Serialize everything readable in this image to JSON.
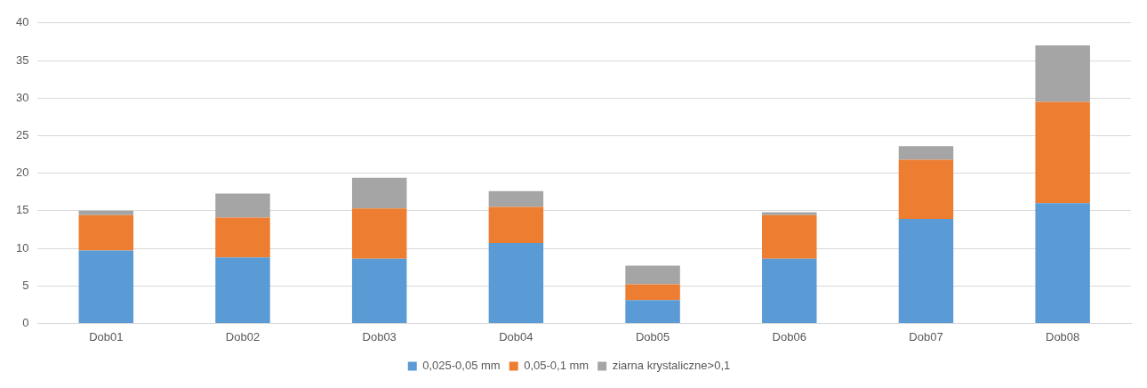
{
  "chart_data": {
    "type": "bar",
    "stacked": true,
    "categories": [
      "Dob01",
      "Dob02",
      "Dob03",
      "Dob04",
      "Dob05",
      "Dob06",
      "Dob07",
      "Dob08"
    ],
    "series": [
      {
        "name": "0,025-0,05 mm",
        "color": "#5b9bd5",
        "values": [
          9.7,
          8.8,
          8.6,
          10.7,
          3.1,
          8.6,
          13.9,
          16.0
        ]
      },
      {
        "name": "0,05-0,1 mm",
        "color": "#ed7d31",
        "values": [
          4.7,
          5.3,
          6.7,
          4.8,
          2.1,
          5.8,
          7.9,
          13.5
        ]
      },
      {
        "name": "ziarna krystaliczne>0,1",
        "color": "#a5a5a5",
        "values": [
          0.6,
          3.2,
          4.1,
          2.1,
          2.5,
          0.4,
          1.8,
          7.5
        ]
      }
    ],
    "ylim": [
      0,
      40
    ],
    "yticks": [
      0,
      5,
      10,
      15,
      20,
      25,
      30,
      35,
      40
    ],
    "grid": "y",
    "legend": "bottom"
  }
}
